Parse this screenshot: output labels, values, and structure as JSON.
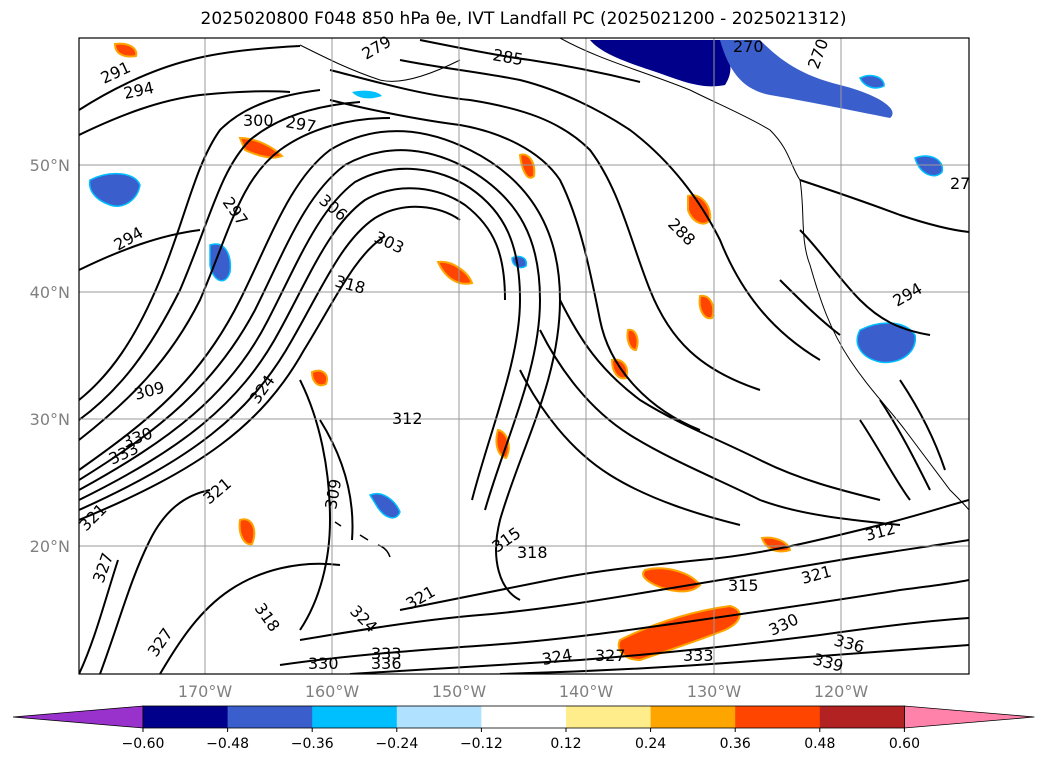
{
  "title": "2025020800 F048 850 hPa θe, IVT Landfall PC (2025021200 - 2025021312)",
  "map": {
    "lat_labels": [
      "50°N",
      "40°N",
      "30°N",
      "20°N"
    ],
    "lon_labels": [
      "170°W",
      "160°W",
      "150°W",
      "140°W",
      "130°W",
      "120°W"
    ],
    "contour_labels": [
      "291",
      "294",
      "279",
      "285",
      "270",
      "270",
      "300",
      "297",
      "297",
      "306",
      "303",
      "294",
      "288",
      "318",
      "309",
      "324",
      "312",
      "330",
      "333",
      "321",
      "321",
      "309",
      "315",
      "318",
      "327",
      "315",
      "321",
      "312",
      "327",
      "318",
      "324",
      "321",
      "330",
      "336",
      "324",
      "327",
      "333",
      "339",
      "330",
      "333",
      "336",
      "294",
      "27"
    ],
    "feature_colors": {
      "contour": "#000000",
      "neg_strong": "#00008b",
      "neg_mid": "#3a5fcd",
      "neg_light": "#00bfff",
      "pos_light": "#ffec8b",
      "pos_mid": "#ffa500",
      "pos_strong": "#ff4500"
    }
  },
  "colorbar": {
    "ticks": [
      "−0.60",
      "−0.48",
      "−0.36",
      "−0.24",
      "−0.12",
      "0.12",
      "0.24",
      "0.36",
      "0.48",
      "0.60"
    ],
    "colors": [
      "#9932cc",
      "#00008b",
      "#3a5fcd",
      "#00bfff",
      "#b0e2ff",
      "#ffffff",
      "#ffec8b",
      "#ffa500",
      "#ff4500",
      "#b22222",
      "#ff82ab"
    ]
  }
}
